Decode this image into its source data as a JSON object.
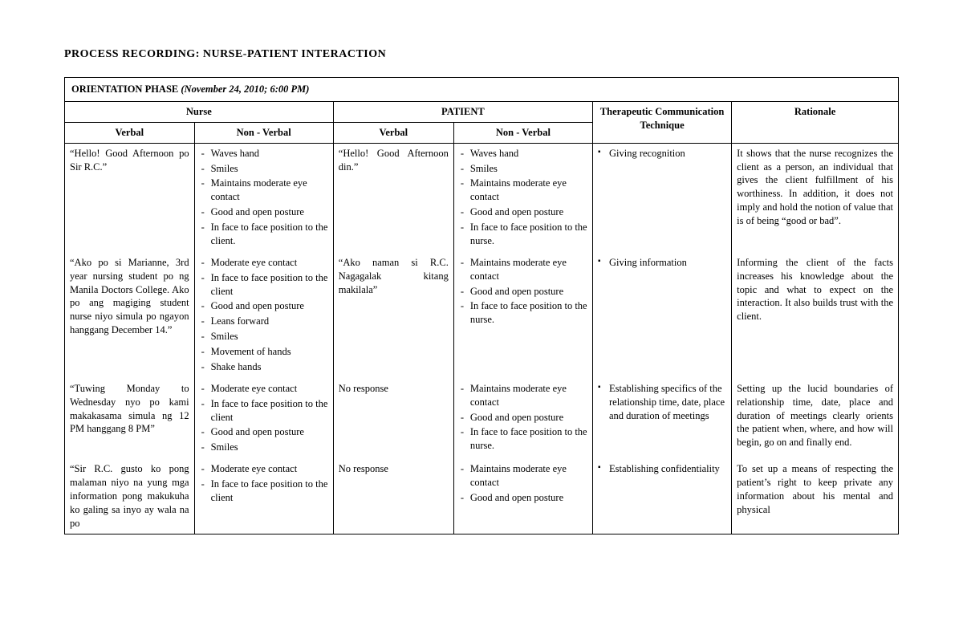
{
  "title": "PROCESS RECORDING: NURSE-PATIENT INTERACTION",
  "phase": {
    "label": "ORIENTATION PHASE",
    "datetime": "(November 24, 2010;  6:00 PM)"
  },
  "headers": {
    "nurse": "Nurse",
    "patient": "PATIENT",
    "therapeutic": "Therapeutic Communication Technique",
    "rationale": "Rationale",
    "verbal": "Verbal",
    "nonverbal": "Non - Verbal"
  },
  "rows": [
    {
      "nurse_verbal": "“Hello! Good Afternoon po Sir R.C.”",
      "nurse_nonverbal": [
        "Waves hand",
        "Smiles",
        "Maintains moderate eye contact",
        "Good and open posture",
        "In face to face position to the client."
      ],
      "patient_verbal": "“Hello! Good Afternoon din.”",
      "patient_nonverbal": [
        "Waves hand",
        "Smiles",
        "Maintains moderate eye contact",
        "Good and open posture",
        "In face to face position to the nurse."
      ],
      "technique": [
        "Giving recognition"
      ],
      "rationale": "It shows that the nurse recognizes the client as a person, an individual that gives the client fulfillment of his worthiness. In addition, it does not imply and hold the notion of value that is of being “good or bad”."
    },
    {
      "nurse_verbal": "“Ako po si Marianne, 3rd year nursing student po ng Manila Doctors College. Ako po ang magiging student nurse niyo simula po ngayon hanggang December 14.”",
      "nurse_nonverbal": [
        "Moderate eye contact",
        "In face to face position to the client",
        "Good and open posture",
        "Leans forward",
        "Smiles",
        "Movement of hands",
        "Shake hands"
      ],
      "patient_verbal": "“Ako naman si R.C. Nagagalak kitang makilala”",
      "patient_nonverbal": [
        "Maintains moderate eye contact",
        "Good and open posture",
        "In face to face position to the nurse."
      ],
      "technique": [
        "Giving information"
      ],
      "rationale": "Informing the client of the facts increases his knowledge about the topic and what to expect on the interaction. It also builds trust with the client."
    },
    {
      "nurse_verbal": "“Tuwing Monday to Wednesday nyo po kami makakasama simula ng 12 PM hanggang 8 PM”",
      "nurse_nonverbal": [
        "Moderate eye contact",
        "In face to face position to the client",
        "Good and open posture",
        "Smiles"
      ],
      "patient_verbal": "No response",
      "patient_nonverbal": [
        "Maintains moderate eye contact",
        "Good and open posture",
        "In face to face position to the nurse."
      ],
      "technique": [
        "Establishing specifics of the relationship time, date, place and duration of meetings"
      ],
      "rationale": "Setting up the lucid boundaries of relationship time, date, place and duration of meetings clearly orients the patient when, where, and how will begin, go on and finally end."
    },
    {
      "nurse_verbal": "“Sir R.C. gusto ko pong malaman niyo na yung mga information pong makukuha ko galing sa inyo ay wala na po",
      "nurse_nonverbal": [
        "Moderate eye contact",
        "In face to face position to the client"
      ],
      "patient_verbal": "No response",
      "patient_nonverbal": [
        "Maintains moderate eye contact",
        "Good and open posture"
      ],
      "technique": [
        "Establishing confidentiality"
      ],
      "rationale": "To set up a means of respecting the patient’s right to keep private any information about his mental and physical"
    }
  ]
}
